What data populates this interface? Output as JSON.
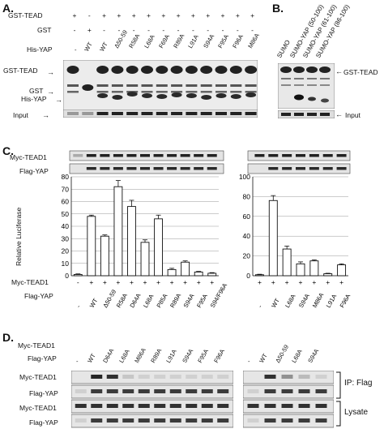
{
  "panelA": {
    "letter": "A.",
    "rows": [
      {
        "label": "GST-TEAD",
        "signs": [
          "+",
          "-",
          "+",
          "+",
          "+",
          "+",
          "+",
          "+",
          "+",
          "+",
          "+",
          "+",
          "+"
        ]
      },
      {
        "label": "GST",
        "signs": [
          "-",
          "+",
          "-",
          "-",
          "-",
          "-",
          "-",
          "-",
          "-",
          "-",
          "-",
          "-",
          "-"
        ]
      }
    ],
    "his_yap_label": "His-YAP",
    "lanes": [
      "-",
      "WT",
      "WT",
      "Δ50-59",
      "R58A",
      "L68A",
      "F69A",
      "R89A",
      "L91A",
      "S94A",
      "F95A",
      "F96A",
      "M86A"
    ],
    "band_labels": [
      "GST-TEAD",
      "GST",
      "His-YAP",
      "Input"
    ]
  },
  "panelB": {
    "letter": "B.",
    "lanes": [
      "SUMO",
      "SUMO-YAP (50-100)",
      "SUMO-YAP (61-100)",
      "SUMO-YAP (86-100)"
    ],
    "band_labels": [
      "GST-TEAD",
      "Input"
    ]
  },
  "panelC": {
    "letter": "C.",
    "blot_labels": [
      "Myc-TEAD1",
      "Flag-YAP"
    ],
    "ylabel": "Relative Luciferase",
    "row_labels": [
      "Myc-TEAD1",
      "Flag-YAP"
    ],
    "chart_data": [
      {
        "type": "bar",
        "categories": [
          "-",
          "WT",
          "Δ50-59",
          "R58A",
          "D64A",
          "L68A",
          "P85A",
          "R89A",
          "S94A",
          "F95A",
          "S94/F96A"
        ],
        "myc_tead1": [
          "-",
          "+",
          "+",
          "+",
          "+",
          "+",
          "+",
          "+",
          "+",
          "+",
          "+"
        ],
        "values": [
          1,
          48,
          32,
          72,
          56,
          27,
          46,
          5,
          11,
          3,
          2
        ],
        "errors": [
          0.5,
          1,
          1,
          5,
          5,
          2,
          3,
          1,
          1,
          0.5,
          0.5
        ],
        "ylim": [
          0,
          80
        ],
        "yticks": [
          0,
          10,
          20,
          30,
          40,
          50,
          60,
          70,
          80
        ]
      },
      {
        "type": "bar",
        "categories": [
          "-",
          "WT",
          "L68A",
          "S94A",
          "M86A",
          "L91A",
          "F96A"
        ],
        "myc_tead1": [
          "+",
          "+",
          "+",
          "+",
          "+",
          "+",
          "+"
        ],
        "values": [
          1,
          76,
          27,
          12,
          15,
          2,
          11
        ],
        "errors": [
          0.5,
          5,
          3,
          2,
          1,
          0.5,
          1
        ],
        "ylim": [
          0,
          100
        ],
        "yticks": [
          0,
          20,
          40,
          60,
          80,
          100
        ]
      }
    ]
  },
  "panelD": {
    "letter": "D.",
    "row_labels": [
      "Myc-TEAD1",
      "Flag-YAP"
    ],
    "left_lanes": [
      "-",
      "WT",
      "D64A",
      "L68A",
      "M86A",
      "R89A",
      "L91A",
      "S94A",
      "F95A",
      "F96A"
    ],
    "right_lanes": [
      "-",
      "WT",
      "Δ50-59",
      "L68A",
      "S94A"
    ],
    "blot_labels": [
      "Myc-TEAD1",
      "Flag-YAP",
      "Myc-TEAD1",
      "Flag-YAP"
    ],
    "group_labels": [
      "IP: Flag",
      "Lysate"
    ]
  }
}
